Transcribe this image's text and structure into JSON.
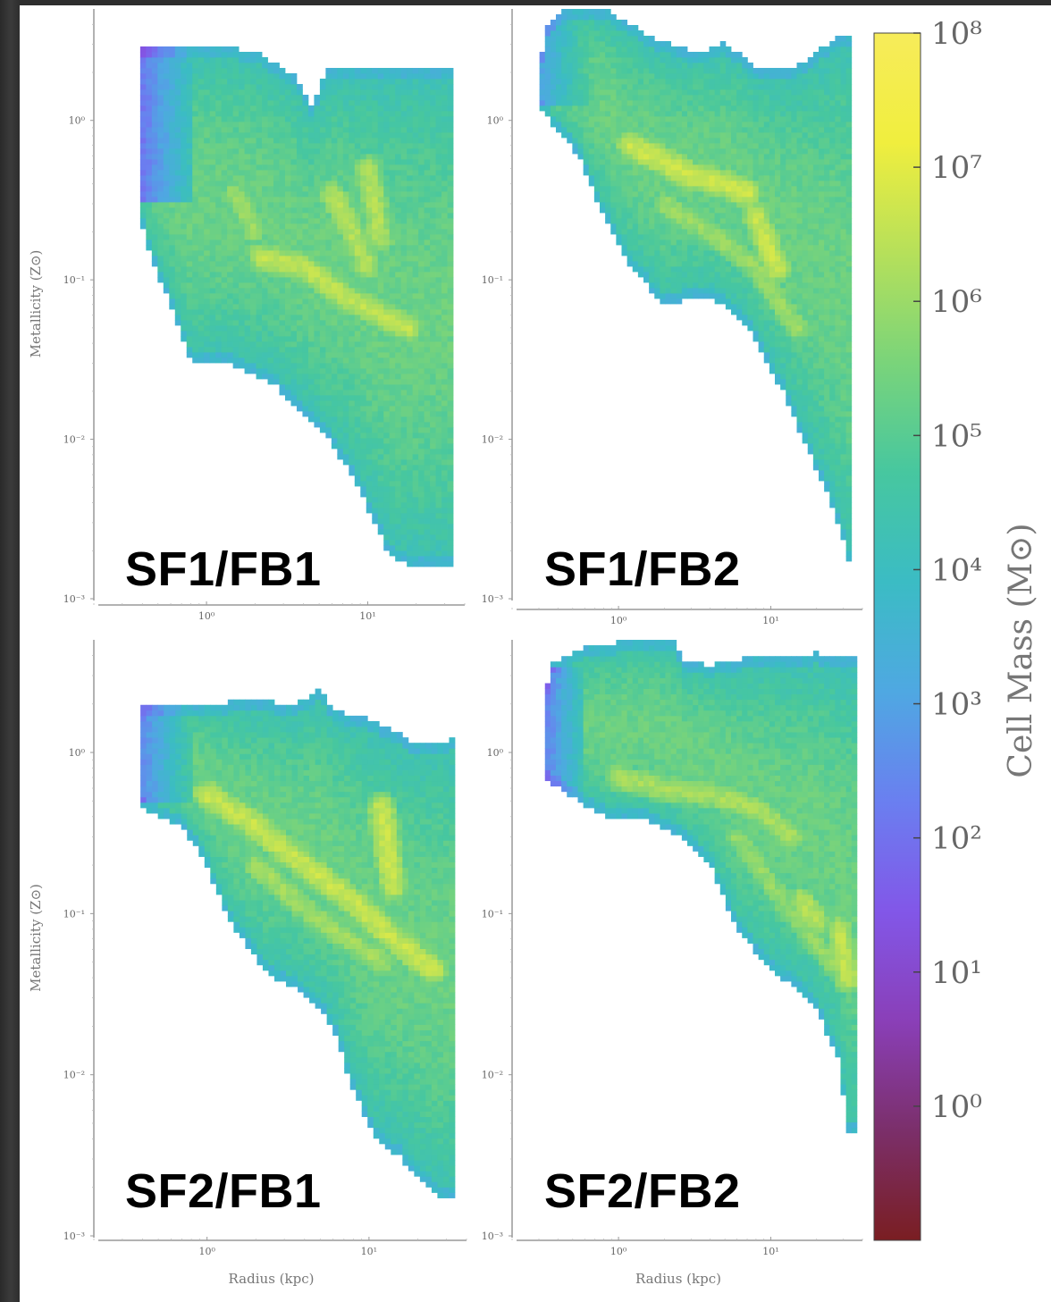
{
  "chart_data": {
    "type": "heatmap",
    "panels": [
      {
        "label": "SF1/FB1",
        "xlabel": "",
        "ylabel": "Metallicity (Z⊙)",
        "xscale": "log",
        "yscale": "log",
        "xlim": [
          0.2,
          40
        ],
        "ylim": [
          0.001,
          5
        ],
        "x_ticks": [
          "10⁰",
          "10¹"
        ],
        "y_ticks": [
          "10⁰",
          "10⁻¹",
          "10⁻²",
          "10⁻³"
        ],
        "upper_boundary": [
          [
            0.38,
            3.0
          ],
          [
            0.45,
            3.0
          ],
          [
            0.8,
            2.9
          ],
          [
            1.3,
            2.9
          ],
          [
            2.0,
            2.7
          ],
          [
            3.6,
            1.9
          ],
          [
            4.5,
            1.2
          ],
          [
            5.5,
            2.1
          ],
          [
            10,
            2.1
          ],
          [
            33,
            2.1
          ]
        ],
        "lower_boundary": [
          [
            0.38,
            0.25
          ],
          [
            0.45,
            0.14
          ],
          [
            0.6,
            0.07
          ],
          [
            0.8,
            0.03
          ],
          [
            1.3,
            0.03
          ],
          [
            2.5,
            0.023
          ],
          [
            5,
            0.012
          ],
          [
            8,
            0.006
          ],
          [
            12,
            0.0025
          ],
          [
            14,
            0.0018
          ],
          [
            20,
            0.0016
          ],
          [
            33,
            0.0016
          ]
        ],
        "ridges": [
          {
            "points": [
              [
                2.2,
                0.14
              ],
              [
                4,
                0.12
              ],
              [
                7,
                0.08
              ],
              [
                12,
                0.06
              ],
              [
                18,
                0.05
              ]
            ],
            "level": 6.5
          },
          {
            "points": [
              [
                6,
                0.35
              ],
              [
                8,
                0.2
              ],
              [
                10,
                0.12
              ]
            ],
            "level": 6.3
          },
          {
            "points": [
              [
                10,
                0.5
              ],
              [
                11,
                0.3
              ],
              [
                12,
                0.18
              ]
            ],
            "level": 6.3
          },
          {
            "points": [
              [
                1.5,
                0.35
              ],
              [
                2,
                0.2
              ]
            ],
            "level": 6.0
          }
        ],
        "low_regions": [
          {
            "x": [
              0.38,
              0.8
            ],
            "y": [
              0.3,
              3.0
            ],
            "level": 2.0
          }
        ]
      },
      {
        "label": "SF1/FB2",
        "xlabel": "",
        "ylabel": "",
        "xscale": "log",
        "yscale": "log",
        "xlim": [
          0.2,
          40
        ],
        "ylim": [
          0.001,
          5
        ],
        "x_ticks": [
          "10⁰",
          "10¹"
        ],
        "y_ticks": [
          "10⁰",
          "10⁻¹",
          "10⁻²",
          "10⁻³"
        ],
        "upper_boundary": [
          [
            0.3,
            1.8
          ],
          [
            0.33,
            4.0
          ],
          [
            0.45,
            5.0
          ],
          [
            0.8,
            5.0
          ],
          [
            1.2,
            4.0
          ],
          [
            1.8,
            3.2
          ],
          [
            3.5,
            2.6
          ],
          [
            5,
            3.1
          ],
          [
            8,
            2.1
          ],
          [
            15,
            2.2
          ],
          [
            30,
            3.5
          ],
          [
            33,
            3.5
          ]
        ],
        "lower_boundary": [
          [
            0.3,
            1.2
          ],
          [
            0.55,
            0.6
          ],
          [
            0.8,
            0.25
          ],
          [
            1.2,
            0.12
          ],
          [
            2,
            0.07
          ],
          [
            4,
            0.08
          ],
          [
            7,
            0.05
          ],
          [
            12,
            0.02
          ],
          [
            18,
            0.008
          ],
          [
            25,
            0.004
          ],
          [
            33,
            0.0017
          ]
        ],
        "ridges": [
          {
            "points": [
              [
                1.2,
                0.7
              ],
              [
                2,
                0.55
              ],
              [
                3,
                0.45
              ],
              [
                5,
                0.4
              ],
              [
                7,
                0.35
              ]
            ],
            "level": 6.7
          },
          {
            "points": [
              [
                8,
                0.25
              ],
              [
                10,
                0.15
              ],
              [
                11,
                0.12
              ]
            ],
            "level": 6.6
          },
          {
            "points": [
              [
                2,
                0.3
              ],
              [
                4,
                0.2
              ],
              [
                8,
                0.12
              ],
              [
                15,
                0.05
              ]
            ],
            "level": 6.0
          }
        ],
        "low_regions": [
          {
            "x": [
              0.3,
              0.7
            ],
            "y": [
              1.2,
              5.0
            ],
            "level": 3.0
          }
        ]
      },
      {
        "label": "SF2/FB1",
        "xlabel": "Radius (kpc)",
        "ylabel": "Metallicity (Z⊙)",
        "xscale": "log",
        "yscale": "log",
        "xlim": [
          0.2,
          40
        ],
        "ylim": [
          0.001,
          5
        ],
        "x_ticks": [
          "10⁰",
          "10¹"
        ],
        "y_ticks": [
          "10⁰",
          "10⁻¹",
          "10⁻²",
          "10⁻³"
        ],
        "upper_boundary": [
          [
            0.4,
            2.0
          ],
          [
            0.8,
            2.0
          ],
          [
            2,
            2.1
          ],
          [
            3.5,
            2.0
          ],
          [
            5,
            2.5
          ],
          [
            6,
            1.8
          ],
          [
            9,
            1.7
          ],
          [
            14,
            1.4
          ],
          [
            20,
            1.1
          ],
          [
            33,
            1.2
          ]
        ],
        "lower_boundary": [
          [
            0.4,
            0.45
          ],
          [
            0.7,
            0.35
          ],
          [
            1.0,
            0.2
          ],
          [
            1.3,
            0.1
          ],
          [
            1.8,
            0.06
          ],
          [
            2.5,
            0.04
          ],
          [
            4,
            0.032
          ],
          [
            6,
            0.02
          ],
          [
            8,
            0.008
          ],
          [
            11,
            0.004
          ],
          [
            16,
            0.003
          ],
          [
            25,
            0.0018
          ],
          [
            33,
            0.0017
          ]
        ],
        "ridges": [
          {
            "points": [
              [
                1.0,
                0.55
              ],
              [
                2,
                0.35
              ],
              [
                4,
                0.2
              ],
              [
                8,
                0.12
              ],
              [
                14,
                0.07
              ],
              [
                25,
                0.045
              ]
            ],
            "level": 6.6
          },
          {
            "points": [
              [
                12,
                0.45
              ],
              [
                13,
                0.25
              ],
              [
                14,
                0.15
              ]
            ],
            "level": 6.6
          },
          {
            "points": [
              [
                2,
                0.2
              ],
              [
                5,
                0.09
              ],
              [
                12,
                0.05
              ]
            ],
            "level": 6.1
          }
        ],
        "low_regions": [
          {
            "x": [
              0.4,
              0.8
            ],
            "y": [
              0.5,
              2.0
            ],
            "level": 2.5
          }
        ]
      },
      {
        "label": "SF2/FB2",
        "xlabel": "Radius (kpc)",
        "ylabel": "",
        "xscale": "log",
        "yscale": "log",
        "xlim": [
          0.2,
          40
        ],
        "ylim": [
          0.001,
          5
        ],
        "x_ticks": [
          "10⁰",
          "10¹"
        ],
        "y_ticks": [
          "10⁰",
          "10⁻¹",
          "10⁻²",
          "10⁻³"
        ],
        "upper_boundary": [
          [
            0.32,
            1.2
          ],
          [
            0.35,
            3.5
          ],
          [
            0.6,
            4.5
          ],
          [
            1.2,
            5.0
          ],
          [
            2.4,
            5.0
          ],
          [
            2.6,
            3.6
          ],
          [
            4,
            3.5
          ],
          [
            8,
            4.0
          ],
          [
            14,
            3.8
          ],
          [
            20,
            4.2
          ],
          [
            28,
            3.8
          ],
          [
            38,
            3.9
          ]
        ],
        "lower_boundary": [
          [
            0.32,
            0.7
          ],
          [
            0.55,
            0.5
          ],
          [
            0.8,
            0.4
          ],
          [
            1.5,
            0.38
          ],
          [
            2.5,
            0.3
          ],
          [
            4,
            0.2
          ],
          [
            6,
            0.08
          ],
          [
            9,
            0.05
          ],
          [
            14,
            0.035
          ],
          [
            20,
            0.025
          ],
          [
            28,
            0.012
          ],
          [
            33,
            0.004
          ],
          [
            38,
            0.0045
          ]
        ],
        "ridges": [
          {
            "points": [
              [
                1.0,
                0.7
              ],
              [
                2,
                0.6
              ],
              [
                4,
                0.55
              ],
              [
                8,
                0.45
              ],
              [
                14,
                0.3
              ]
            ],
            "level": 6.2
          },
          {
            "points": [
              [
                16,
                0.12
              ],
              [
                20,
                0.09
              ]
            ],
            "level": 6.4
          },
          {
            "points": [
              [
                28,
                0.08
              ],
              [
                32,
                0.04
              ]
            ],
            "level": 6.5
          },
          {
            "points": [
              [
                6,
                0.3
              ],
              [
                12,
                0.12
              ],
              [
                25,
                0.05
              ]
            ],
            "level": 5.9
          }
        ],
        "low_regions": [
          {
            "x": [
              0.32,
              0.6
            ],
            "y": [
              0.5,
              3.5
            ],
            "level": 2.2
          }
        ]
      }
    ],
    "colorbar": {
      "label": "Cell Mass (M⊙)",
      "scale": "log",
      "range": [
        -1,
        8
      ],
      "ticks": [
        "10⁸",
        "10⁷",
        "10⁶",
        "10⁵",
        "10⁴",
        "10³",
        "10²",
        "10¹",
        "10⁰"
      ],
      "tick_values": [
        8,
        7,
        6,
        5,
        4,
        3,
        2,
        1,
        0
      ],
      "colormap": "viridis-plasma",
      "colors": [
        "#7a1e22",
        "#7b2f6a",
        "#8a3fb8",
        "#8257e8",
        "#6a7ff0",
        "#4fa8e2",
        "#3bbcc4",
        "#47c79f",
        "#7ad47a",
        "#b6e05a",
        "#f0ee3e",
        "#f7ec5a"
      ]
    }
  }
}
